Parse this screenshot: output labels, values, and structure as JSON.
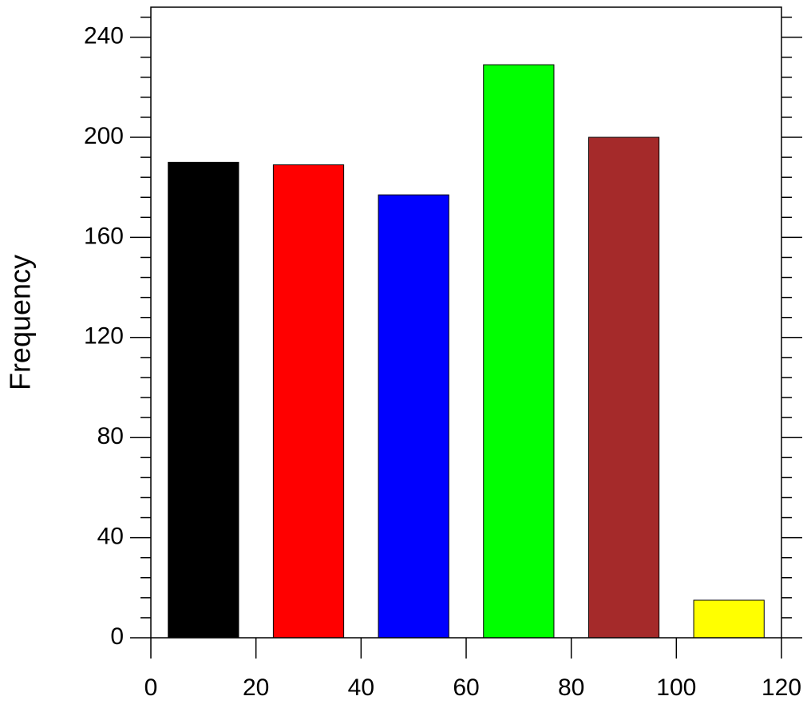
{
  "chart_data": {
    "type": "histogram",
    "y_label": "Frequency",
    "bins": [
      0,
      20,
      40,
      60,
      80,
      100,
      120
    ],
    "values": [
      190,
      189,
      177,
      229,
      200,
      15
    ],
    "colors": [
      "#000000",
      "#ff0000",
      "#0000ff",
      "#00ff00",
      "#a52a2a",
      "#ffff00"
    ],
    "xlim": [
      0,
      120
    ],
    "xticks": [
      0,
      20,
      40,
      60,
      80,
      100,
      120
    ],
    "ylim": [
      0,
      252
    ],
    "yticks": [
      0,
      40,
      80,
      120,
      160,
      200,
      240
    ],
    "grid": false
  }
}
